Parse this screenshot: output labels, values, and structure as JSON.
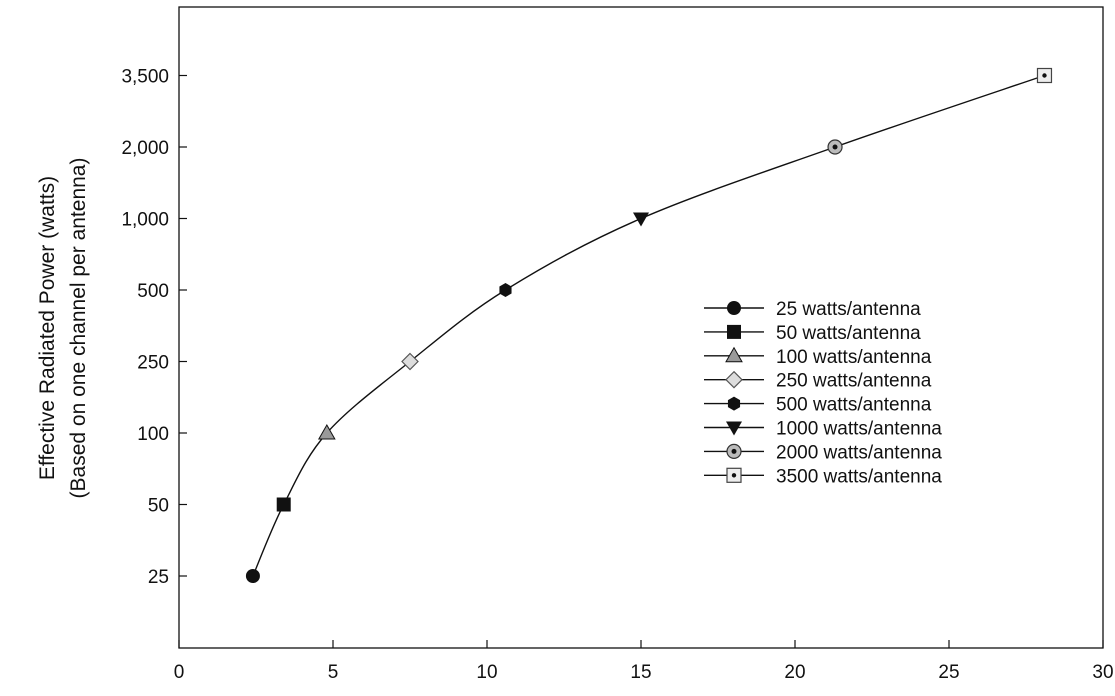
{
  "chart_data": {
    "type": "line",
    "title": "",
    "xlabel": "",
    "ylabel": "Effective Radiated Power (watts)",
    "ylabel_line2": "(Based on one channel per antenna)",
    "xlim": [
      0,
      30
    ],
    "x_ticks": [
      "0",
      "5",
      "10",
      "15",
      "20",
      "25",
      "30"
    ],
    "y_scale": "categorical",
    "y_levels": [
      "25",
      "50",
      "100",
      "250",
      "500",
      "1,000",
      "2,000",
      "3,500"
    ],
    "y_ticks": [
      "25",
      "50",
      "100",
      "250",
      "500",
      "1,000",
      "2,000",
      "3,500"
    ],
    "grid": false,
    "legend_position": "right",
    "series": [
      {
        "name": "25 watts/antenna",
        "marker": "circle",
        "x": 2.4,
        "y": "25",
        "y_value": 25
      },
      {
        "name": "50 watts/antenna",
        "marker": "square",
        "x": 3.4,
        "y": "50",
        "y_value": 50
      },
      {
        "name": "100 watts/antenna",
        "marker": "triangle-up",
        "x": 4.8,
        "y": "100",
        "y_value": 100
      },
      {
        "name": "250 watts/antenna",
        "marker": "diamond",
        "x": 7.5,
        "y": "250",
        "y_value": 250
      },
      {
        "name": "500 watts/antenna",
        "marker": "hexagon",
        "x": 10.6,
        "y": "500",
        "y_value": 500
      },
      {
        "name": "1000 watts/antenna",
        "marker": "triangle-down",
        "x": 15.0,
        "y": "1,000",
        "y_value": 1000
      },
      {
        "name": "2000 watts/antenna",
        "marker": "circle-dot",
        "x": 21.3,
        "y": "2,000",
        "y_value": 2000
      },
      {
        "name": "3500 watts/antenna",
        "marker": "square-dot",
        "x": 28.1,
        "y": "3,500",
        "y_value": 3500
      }
    ]
  }
}
